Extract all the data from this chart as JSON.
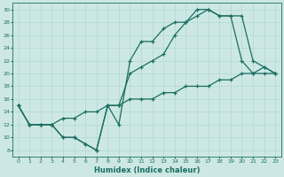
{
  "xlabel": "Humidex (Indice chaleur)",
  "bg_color": "#cde8e4",
  "grid_color": "#a8d5cc",
  "line_color": "#1a6e62",
  "xlim": [
    -0.5,
    23.5
  ],
  "ylim": [
    7,
    31
  ],
  "xticks": [
    0,
    1,
    2,
    3,
    4,
    5,
    6,
    7,
    8,
    9,
    10,
    11,
    12,
    13,
    14,
    15,
    16,
    17,
    18,
    19,
    20,
    21,
    22,
    23
  ],
  "yticks": [
    8,
    10,
    12,
    14,
    16,
    18,
    20,
    22,
    24,
    26,
    28,
    30
  ],
  "line1_x": [
    0,
    1,
    2,
    3,
    4,
    5,
    6,
    7,
    8,
    9,
    10,
    11,
    12,
    13,
    14,
    15,
    16,
    17,
    18,
    19,
    20,
    21,
    22,
    23
  ],
  "line1_y": [
    15,
    12,
    12,
    12,
    10,
    10,
    9,
    8,
    15,
    12,
    22,
    25,
    25,
    27,
    28,
    28,
    29,
    30,
    29,
    29,
    22,
    20,
    21,
    20
  ],
  "line2_x": [
    0,
    1,
    2,
    3,
    4,
    5,
    6,
    7,
    8,
    9,
    10,
    11,
    12,
    13,
    14,
    15,
    16,
    17,
    18,
    19,
    20,
    21,
    22,
    23
  ],
  "line2_y": [
    15,
    12,
    12,
    12,
    10,
    10,
    9,
    8,
    15,
    15,
    20,
    21,
    22,
    23,
    26,
    28,
    30,
    30,
    29,
    29,
    29,
    22,
    21,
    20
  ],
  "line3_x": [
    0,
    1,
    2,
    3,
    4,
    5,
    6,
    7,
    8,
    9,
    10,
    11,
    12,
    13,
    14,
    15,
    16,
    17,
    18,
    19,
    20,
    21,
    22,
    23
  ],
  "line3_y": [
    15,
    12,
    12,
    12,
    13,
    13,
    14,
    14,
    15,
    15,
    16,
    16,
    16,
    17,
    17,
    18,
    18,
    18,
    19,
    19,
    20,
    20,
    20,
    20
  ],
  "xlabel_fontsize": 6,
  "tick_fontsize": 4.5,
  "linewidth": 0.9,
  "markersize": 3.5
}
